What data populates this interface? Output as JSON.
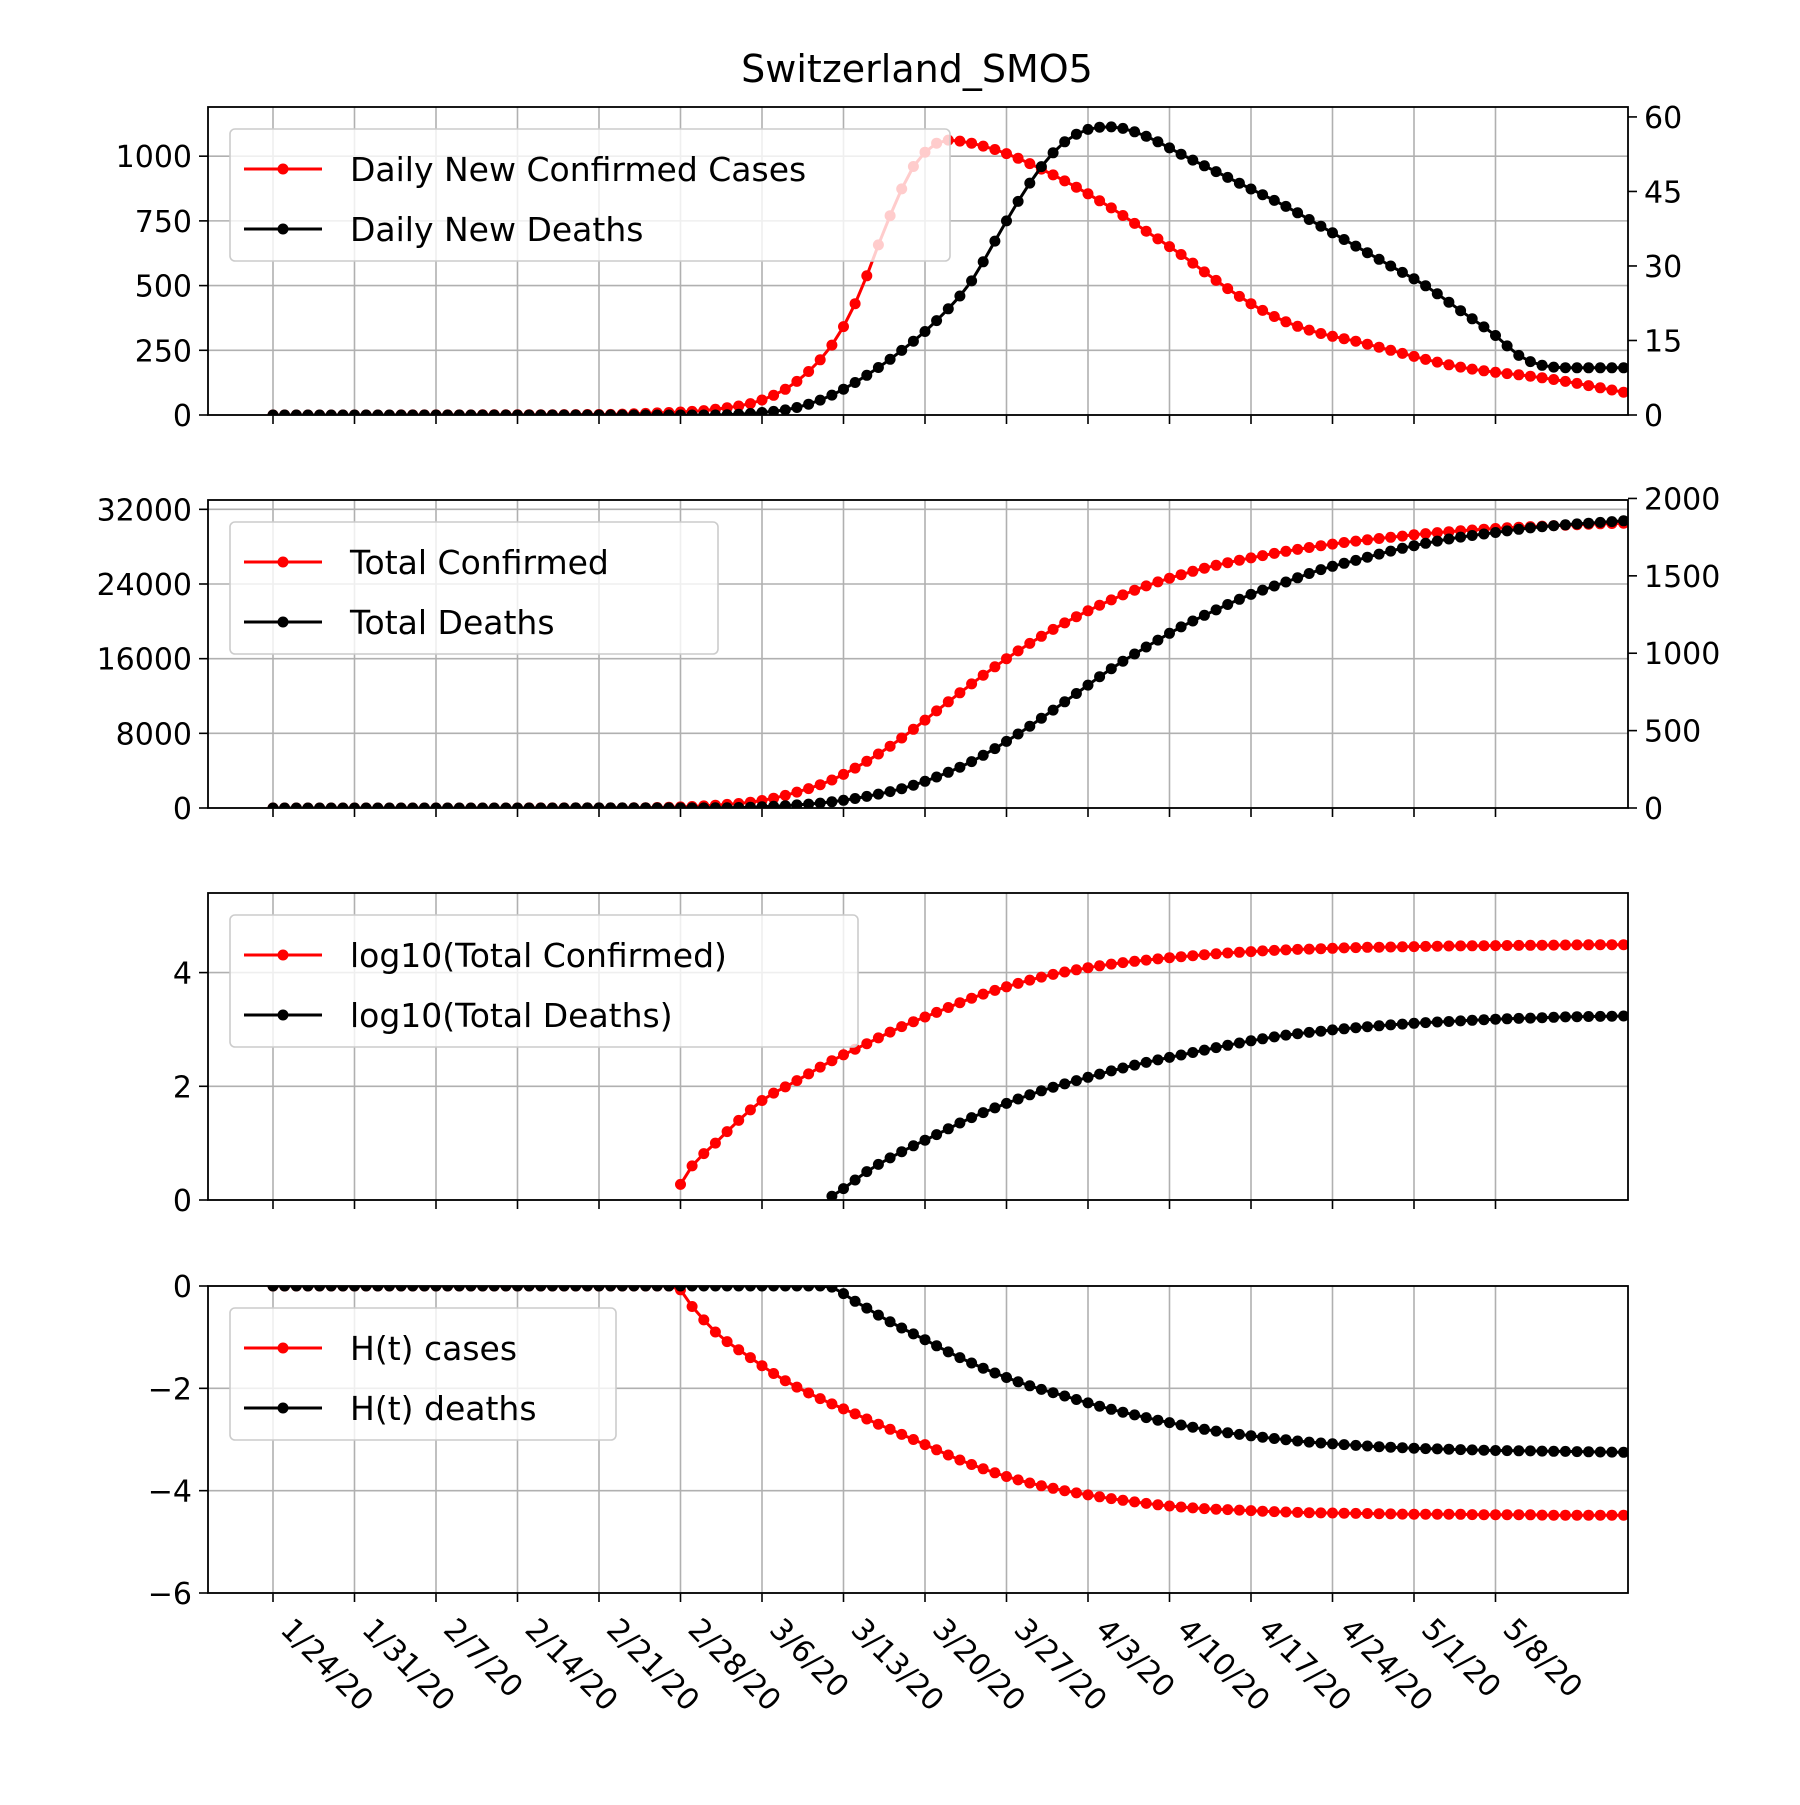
{
  "title": "Switzerland_SMO5",
  "colors": {
    "cases": "#ff0000",
    "deaths": "#000000",
    "grid": "#b0b0b0"
  },
  "chart_data": [
    {
      "type": "line",
      "x": "dates",
      "ylim": [
        0,
        1190
      ],
      "y2lim": [
        0,
        62
      ],
      "yticks": [
        0,
        250,
        500,
        750,
        1000
      ],
      "y2ticks": [
        0,
        15,
        30,
        45,
        60
      ],
      "legend": "top-left",
      "grid": true,
      "series": [
        {
          "name": "Daily New Confirmed Cases",
          "color": "#ff0000",
          "axis": "left",
          "knots": [
            [
              0,
              0
            ],
            [
              28,
              2
            ],
            [
              33,
              8
            ],
            [
              38,
              22
            ],
            [
              42,
              58
            ],
            [
              45,
              130
            ],
            [
              48,
              270
            ],
            [
              50,
              430
            ],
            [
              53,
              770
            ],
            [
              55,
              960
            ],
            [
              57,
              1050
            ],
            [
              58,
              1062
            ],
            [
              60,
              1050
            ],
            [
              63,
              1010
            ],
            [
              66,
              950
            ],
            [
              69,
              880
            ],
            [
              72,
              800
            ],
            [
              75,
              710
            ],
            [
              78,
              620
            ],
            [
              81,
              520
            ],
            [
              84,
              430
            ],
            [
              87,
              360
            ],
            [
              90,
              315
            ],
            [
              93,
              285
            ],
            [
              96,
              250
            ],
            [
              99,
              215
            ],
            [
              102,
              185
            ],
            [
              105,
              165
            ],
            [
              108,
              150
            ],
            [
              111,
              130
            ],
            [
              114,
              105
            ],
            [
              117,
              80
            ],
            [
              120,
              60
            ],
            [
              123,
              52
            ],
            [
              126,
              50
            ]
          ]
        },
        {
          "name": "Daily New Deaths",
          "color": "#000000",
          "axis": "right",
          "knots": [
            [
              0,
              0
            ],
            [
              38,
              0
            ],
            [
              42,
              0.5
            ],
            [
              45,
              1.5
            ],
            [
              48,
              4
            ],
            [
              51,
              8
            ],
            [
              54,
              13
            ],
            [
              57,
              19
            ],
            [
              60,
              27
            ],
            [
              62,
              35
            ],
            [
              64,
              43
            ],
            [
              66,
              50
            ],
            [
              68,
              55
            ],
            [
              70,
              57.5
            ],
            [
              72,
              58
            ],
            [
              74,
              57
            ],
            [
              76,
              55
            ],
            [
              78,
              52.5
            ],
            [
              81,
              49
            ],
            [
              84,
              45.5
            ],
            [
              87,
              42
            ],
            [
              90,
              38
            ],
            [
              93,
              34
            ],
            [
              96,
              30
            ],
            [
              99,
              26
            ],
            [
              102,
              21
            ],
            [
              105,
              16
            ],
            [
              107,
              12
            ],
            [
              109,
              10
            ],
            [
              112,
              9.5
            ],
            [
              126,
              9.5
            ]
          ]
        }
      ]
    },
    {
      "type": "line",
      "x": "dates",
      "ylim": [
        0,
        33000
      ],
      "y2lim": [
        0,
        1990
      ],
      "yticks": [
        0,
        8000,
        16000,
        24000,
        32000
      ],
      "y2ticks": [
        0,
        500,
        1000,
        1500,
        2000
      ],
      "legend": "top-left",
      "grid": true,
      "series": [
        {
          "name": "Total Confirmed",
          "color": "#ff0000",
          "axis": "left",
          "knots": [
            [
              0,
              0
            ],
            [
              28,
              10
            ],
            [
              33,
              50
            ],
            [
              38,
              300
            ],
            [
              42,
              800
            ],
            [
              45,
              1700
            ],
            [
              48,
              3000
            ],
            [
              51,
              5000
            ],
            [
              54,
              7500
            ],
            [
              57,
              10400
            ],
            [
              60,
              13300
            ],
            [
              63,
              16000
            ],
            [
              66,
              18400
            ],
            [
              69,
              20500
            ],
            [
              72,
              22300
            ],
            [
              75,
              23800
            ],
            [
              78,
              25000
            ],
            [
              81,
              26000
            ],
            [
              84,
              26800
            ],
            [
              87,
              27500
            ],
            [
              90,
              28100
            ],
            [
              93,
              28600
            ],
            [
              96,
              29000
            ],
            [
              99,
              29400
            ],
            [
              102,
              29700
            ],
            [
              105,
              29950
            ],
            [
              108,
              30150
            ],
            [
              111,
              30300
            ],
            [
              114,
              30450
            ],
            [
              117,
              30550
            ],
            [
              120,
              30650
            ],
            [
              123,
              30700
            ],
            [
              126,
              30750
            ]
          ]
        },
        {
          "name": "Total Deaths",
          "color": "#000000",
          "axis": "right",
          "knots": [
            [
              0,
              0
            ],
            [
              38,
              1
            ],
            [
              42,
              8
            ],
            [
              45,
              20
            ],
            [
              48,
              40
            ],
            [
              51,
              75
            ],
            [
              54,
              125
            ],
            [
              57,
              200
            ],
            [
              60,
              300
            ],
            [
              63,
              430
            ],
            [
              66,
              580
            ],
            [
              69,
              740
            ],
            [
              72,
              900
            ],
            [
              75,
              1040
            ],
            [
              78,
              1170
            ],
            [
              81,
              1280
            ],
            [
              84,
              1380
            ],
            [
              87,
              1460
            ],
            [
              90,
              1540
            ],
            [
              93,
              1600
            ],
            [
              96,
              1660
            ],
            [
              99,
              1710
            ],
            [
              102,
              1750
            ],
            [
              105,
              1780
            ],
            [
              108,
              1810
            ],
            [
              111,
              1830
            ],
            [
              114,
              1845
            ],
            [
              117,
              1860
            ],
            [
              120,
              1870
            ],
            [
              123,
              1880
            ],
            [
              126,
              1885
            ]
          ]
        }
      ]
    },
    {
      "type": "line",
      "x": "dates",
      "ylim": [
        0,
        5.4
      ],
      "yticks": [
        0,
        2,
        4
      ],
      "legend": "top-left",
      "grid": true,
      "series": [
        {
          "name": "log10(Total Confirmed)",
          "color": "#ff0000",
          "axis": "left",
          "knots": [
            [
              34.5,
              0.1
            ],
            [
              36,
              0.6
            ],
            [
              38,
              1.0
            ],
            [
              40,
              1.4
            ],
            [
              42,
              1.75
            ],
            [
              45,
              2.1
            ],
            [
              48,
              2.45
            ],
            [
              51,
              2.75
            ],
            [
              54,
              3.05
            ],
            [
              57,
              3.3
            ],
            [
              60,
              3.55
            ],
            [
              63,
              3.75
            ],
            [
              66,
              3.92
            ],
            [
              69,
              4.05
            ],
            [
              72,
              4.15
            ],
            [
              75,
              4.22
            ],
            [
              78,
              4.28
            ],
            [
              81,
              4.33
            ],
            [
              84,
              4.37
            ],
            [
              87,
              4.4
            ],
            [
              90,
              4.42
            ],
            [
              93,
              4.44
            ],
            [
              96,
              4.45
            ],
            [
              99,
              4.46
            ],
            [
              102,
              4.47
            ],
            [
              105,
              4.475
            ],
            [
              108,
              4.48
            ],
            [
              111,
              4.485
            ],
            [
              114,
              4.49
            ],
            [
              117,
              4.49
            ],
            [
              120,
              4.49
            ],
            [
              123,
              4.49
            ],
            [
              126,
              4.49
            ]
          ]
        },
        {
          "name": "log10(Total Deaths)",
          "color": "#000000",
          "axis": "left",
          "knots": [
            [
              47.5,
              0.0
            ],
            [
              49,
              0.2
            ],
            [
              51,
              0.5
            ],
            [
              54,
              0.85
            ],
            [
              57,
              1.15
            ],
            [
              60,
              1.45
            ],
            [
              63,
              1.7
            ],
            [
              66,
              1.92
            ],
            [
              69,
              2.1
            ],
            [
              72,
              2.27
            ],
            [
              75,
              2.42
            ],
            [
              78,
              2.55
            ],
            [
              81,
              2.68
            ],
            [
              84,
              2.8
            ],
            [
              87,
              2.9
            ],
            [
              90,
              2.97
            ],
            [
              93,
              3.03
            ],
            [
              96,
              3.08
            ],
            [
              99,
              3.12
            ],
            [
              102,
              3.15
            ],
            [
              105,
              3.18
            ],
            [
              108,
              3.2
            ],
            [
              111,
              3.22
            ],
            [
              114,
              3.23
            ],
            [
              117,
              3.24
            ],
            [
              120,
              3.25
            ],
            [
              123,
              3.26
            ],
            [
              126,
              3.26
            ]
          ]
        }
      ]
    },
    {
      "type": "line",
      "x": "dates",
      "ylim": [
        -6,
        0
      ],
      "yticks": [
        -6,
        -4,
        -2,
        0
      ],
      "legend": "top-left",
      "grid": true,
      "series": [
        {
          "name": "H(t) cases",
          "color": "#ff0000",
          "axis": "left",
          "knots": [
            [
              0,
              0
            ],
            [
              34.5,
              0
            ],
            [
              36,
              -0.4
            ],
            [
              38,
              -0.9
            ],
            [
              41,
              -1.4
            ],
            [
              44,
              -1.85
            ],
            [
              47,
              -2.2
            ],
            [
              50,
              -2.5
            ],
            [
              53,
              -2.8
            ],
            [
              56,
              -3.1
            ],
            [
              59,
              -3.4
            ],
            [
              62,
              -3.65
            ],
            [
              65,
              -3.85
            ],
            [
              68,
              -4.0
            ],
            [
              71,
              -4.12
            ],
            [
              74,
              -4.22
            ],
            [
              77,
              -4.3
            ],
            [
              80,
              -4.35
            ],
            [
              83,
              -4.38
            ],
            [
              86,
              -4.41
            ],
            [
              89,
              -4.43
            ],
            [
              92,
              -4.44
            ],
            [
              95,
              -4.45
            ],
            [
              98,
              -4.46
            ],
            [
              101,
              -4.46
            ],
            [
              104,
              -4.47
            ],
            [
              107,
              -4.47
            ],
            [
              110,
              -4.48
            ],
            [
              113,
              -4.48
            ],
            [
              116,
              -4.48
            ],
            [
              120,
              -4.49
            ],
            [
              126,
              -4.49
            ]
          ]
        },
        {
          "name": "H(t) deaths",
          "color": "#000000",
          "axis": "left",
          "knots": [
            [
              0,
              0
            ],
            [
              47.5,
              0
            ],
            [
              50,
              -0.3
            ],
            [
              53,
              -0.7
            ],
            [
              56,
              -1.05
            ],
            [
              59,
              -1.4
            ],
            [
              62,
              -1.7
            ],
            [
              65,
              -1.95
            ],
            [
              68,
              -2.15
            ],
            [
              71,
              -2.35
            ],
            [
              74,
              -2.52
            ],
            [
              77,
              -2.67
            ],
            [
              80,
              -2.8
            ],
            [
              83,
              -2.9
            ],
            [
              86,
              -2.98
            ],
            [
              89,
              -3.05
            ],
            [
              92,
              -3.1
            ],
            [
              95,
              -3.14
            ],
            [
              98,
              -3.17
            ],
            [
              101,
              -3.19
            ],
            [
              104,
              -3.21
            ],
            [
              107,
              -3.22
            ],
            [
              110,
              -3.23
            ],
            [
              113,
              -3.24
            ],
            [
              116,
              -3.25
            ],
            [
              120,
              -3.26
            ],
            [
              126,
              -3.26
            ]
          ]
        }
      ]
    }
  ],
  "x_axis": {
    "start_date": "1/24/20",
    "end_date": "5/29/20",
    "tick_labels": [
      "1/24/20",
      "1/31/20",
      "2/7/20",
      "2/14/20",
      "2/21/20",
      "2/28/20",
      "3/6/20",
      "3/13/20",
      "3/20/20",
      "3/27/20",
      "4/3/20",
      "4/10/20",
      "4/17/20",
      "4/24/20",
      "5/1/20",
      "5/8/20"
    ]
  }
}
